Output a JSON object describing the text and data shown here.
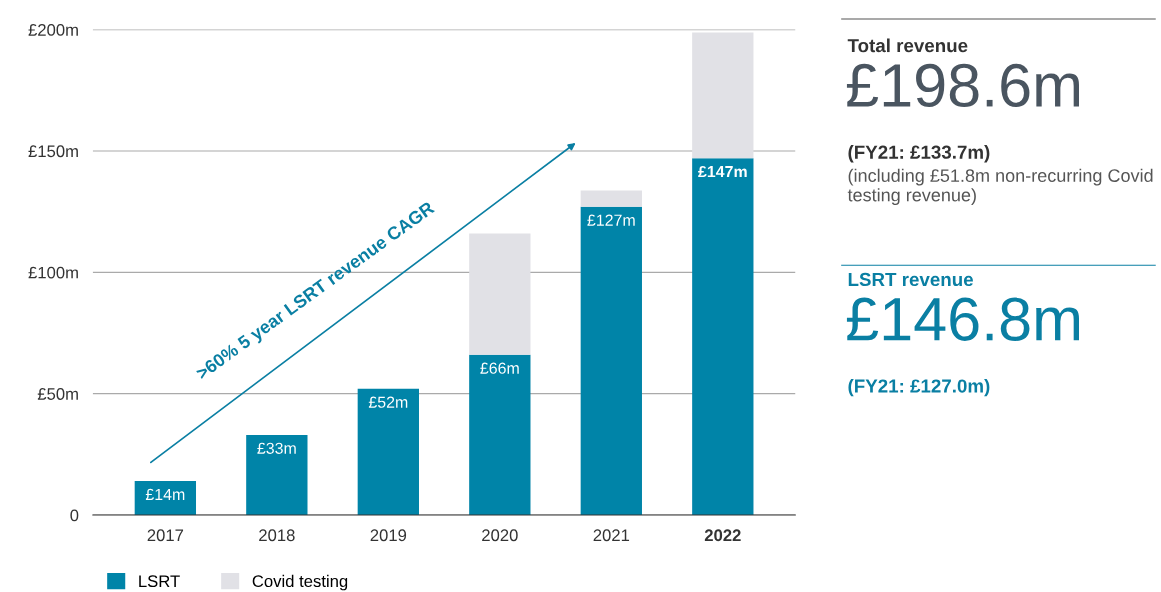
{
  "chart_data": {
    "type": "bar",
    "stacked": true,
    "categories": [
      "2017",
      "2018",
      "2019",
      "2020",
      "2021",
      "2022"
    ],
    "series": [
      {
        "name": "LSRT",
        "color": "#0084a8",
        "values": [
          14,
          33,
          52,
          66,
          127,
          147
        ],
        "value_labels": [
          "£14m",
          "£33m",
          "£52m",
          "£66m",
          "£127m",
          "£147m"
        ]
      },
      {
        "name": "Covid testing",
        "color": "#e1e1e6",
        "values": [
          null,
          null,
          null,
          50,
          6.7,
          51.8
        ]
      }
    ],
    "ylim": [
      0,
      200
    ],
    "yticks": [
      0,
      {
        "value": 50,
        "label": "£50m"
      },
      {
        "value": 100,
        "label": "£100m"
      },
      {
        "value": 150,
        "label": "£150m"
      },
      {
        "value": 200,
        "label": "£200m"
      }
    ],
    "grid": "y",
    "legend": "bottom left",
    "annotations": [
      ">60% 5 year LSRT revenue CAGR",
      "Total revenue",
      "£198.6m",
      "(FY21: £133.7m)",
      "(including £51.8m non-recurring Covid testing revenue)",
      "LSRT revenue",
      "£146.8m",
      "(FY21: £127.0m)"
    ]
  }
}
